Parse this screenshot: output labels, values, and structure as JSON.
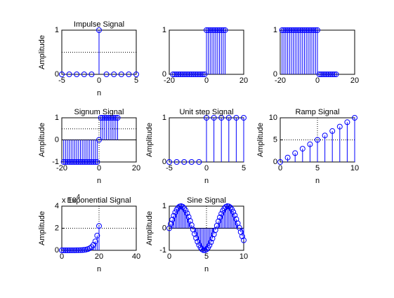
{
  "chart_data": [
    {
      "type": "stem",
      "title": "Impulse Signal",
      "xlabel": "n",
      "ylabel": "Amplitude",
      "color": "#0000ff",
      "x": [
        -5,
        -4,
        -3,
        -2,
        -1,
        0,
        1,
        2,
        3,
        4,
        5
      ],
      "values": [
        0,
        0,
        0,
        0,
        0,
        1,
        0,
        0,
        0,
        0,
        0
      ],
      "xlim": [
        -5,
        5
      ],
      "xticks": [
        -5,
        0,
        5
      ],
      "ylim": [
        0,
        1
      ],
      "yticks": [
        0,
        1
      ],
      "hline": 0.5,
      "vline": 0
    },
    {
      "type": "stem",
      "color": "#0000ff",
      "x": [
        -18,
        -17,
        -16,
        -15,
        -14,
        -13,
        -12,
        -11,
        -10,
        -9,
        -8,
        -7,
        -6,
        -5,
        -4,
        -3,
        -2,
        -1,
        0,
        1,
        2,
        3,
        4,
        5,
        6,
        7,
        8,
        9,
        10
      ],
      "values": [
        0,
        0,
        0,
        0,
        0,
        0,
        0,
        0,
        0,
        0,
        0,
        0,
        0,
        0,
        0,
        0,
        0,
        0,
        1,
        1,
        1,
        1,
        1,
        1,
        1,
        1,
        1,
        1,
        1
      ],
      "xlim": [
        -20,
        20
      ],
      "xticks": [
        -20,
        0,
        20
      ],
      "ylim": [
        0,
        1
      ],
      "yticks": [
        0,
        1
      ]
    },
    {
      "type": "stem",
      "color": "#0000ff",
      "x": [
        -19,
        -18,
        -17,
        -16,
        -15,
        -14,
        -13,
        -12,
        -11,
        -10,
        -9,
        -8,
        -7,
        -6,
        -5,
        -4,
        -3,
        -2,
        -1,
        0,
        1,
        2,
        3,
        4,
        5,
        6,
        7,
        8,
        9,
        10
      ],
      "values": [
        1,
        1,
        1,
        1,
        1,
        1,
        1,
        1,
        1,
        1,
        1,
        1,
        1,
        1,
        1,
        1,
        1,
        1,
        1,
        1,
        0,
        0,
        0,
        0,
        0,
        0,
        0,
        0,
        0,
        0
      ],
      "xlim": [
        -20,
        20
      ],
      "xticks": [
        -20,
        0,
        20
      ],
      "ylim": [
        0,
        1
      ],
      "yticks": [
        0,
        1
      ]
    },
    {
      "type": "stem",
      "title": "Signum Signal",
      "xlabel": "n",
      "ylabel": "Amplitude",
      "color": "#0000ff",
      "x": [
        -19,
        -18,
        -17,
        -16,
        -15,
        -14,
        -13,
        -12,
        -11,
        -10,
        -9,
        -8,
        -7,
        -6,
        -5,
        -4,
        -3,
        -2,
        -1,
        0,
        1,
        2,
        3,
        4,
        5,
        6,
        7,
        8,
        9,
        10
      ],
      "values": [
        -1,
        -1,
        -1,
        -1,
        -1,
        -1,
        -1,
        -1,
        -1,
        -1,
        -1,
        -1,
        -1,
        -1,
        -1,
        -1,
        -1,
        -1,
        -1,
        0,
        1,
        1,
        1,
        1,
        1,
        1,
        1,
        1,
        1,
        1
      ],
      "xlim": [
        -20,
        20
      ],
      "xticks": [
        -20,
        0,
        20
      ],
      "ylim": [
        -1,
        1
      ],
      "yticks": [
        -1,
        0,
        1
      ],
      "hline": 0.5,
      "vline": 0
    },
    {
      "type": "stem",
      "title": "Unit step Signal",
      "xlabel": "n",
      "ylabel": "Amplitude",
      "color": "#0000ff",
      "x": [
        -5,
        -4,
        -3,
        -2,
        -1,
        0,
        1,
        2,
        3,
        4,
        5
      ],
      "values": [
        0,
        0,
        0,
        0,
        0,
        1,
        1,
        1,
        1,
        1,
        1
      ],
      "xlim": [
        -5,
        5
      ],
      "xticks": [
        -5,
        0,
        5
      ],
      "ylim": [
        0,
        1
      ],
      "yticks": [
        0,
        1
      ],
      "vline": 0
    },
    {
      "type": "stem",
      "title": "Ramp Signal",
      "xlabel": "n",
      "ylabel": "Amplitude",
      "color": "#0000ff",
      "x": [
        0,
        1,
        2,
        3,
        4,
        5,
        6,
        7,
        8,
        9,
        10
      ],
      "values": [
        0,
        1,
        2,
        3,
        4,
        5,
        6,
        7,
        8,
        9,
        10
      ],
      "xlim": [
        0,
        10
      ],
      "xticks": [
        0,
        5,
        10
      ],
      "ylim": [
        0,
        10
      ],
      "yticks": [
        0,
        5,
        10
      ],
      "hline": 5,
      "vline": 5
    },
    {
      "type": "stem",
      "title": "Exponential Signal",
      "xlabel": "n",
      "ylabel": "Amplitude",
      "color": "#0000ff",
      "exponent_base": "x 10",
      "exponent": "4",
      "x": [
        0,
        1,
        2,
        3,
        4,
        5,
        6,
        7,
        8,
        9,
        10,
        11,
        12,
        13,
        14,
        15,
        16,
        17,
        18,
        19,
        20
      ],
      "values": [
        0.0001,
        0.0002,
        0.0003,
        0.0004,
        0.0007,
        0.0012,
        0.002,
        0.0033,
        0.0055,
        0.009,
        0.0148,
        0.0245,
        0.0403,
        0.0665,
        0.1097,
        0.1808,
        0.2981,
        0.4915,
        0.8103,
        1.336,
        2.2026
      ],
      "xlim": [
        0,
        40
      ],
      "xticks": [
        0,
        20,
        40
      ],
      "ylim": [
        0,
        4
      ],
      "yticks": [
        0,
        2,
        4
      ],
      "hline": 2,
      "vline": 20
    },
    {
      "type": "stem",
      "title": "Sine Signal",
      "xlabel": "n",
      "ylabel": "Amplitude",
      "color": "#0000ff",
      "x": [
        0,
        0.2,
        0.4,
        0.6,
        0.8,
        1,
        1.2,
        1.4,
        1.6,
        1.8,
        2,
        2.2,
        2.4,
        2.6,
        2.8,
        3,
        3.2,
        3.4,
        3.6,
        3.8,
        4,
        4.2,
        4.4,
        4.6,
        4.8,
        5,
        5.2,
        5.4,
        5.6,
        5.8,
        6,
        6.2,
        6.4,
        6.6,
        6.8,
        7,
        7.2,
        7.4,
        7.6,
        7.8,
        8,
        8.2,
        8.4,
        8.6,
        8.8,
        9,
        9.2,
        9.4,
        9.6,
        9.8,
        10
      ],
      "values": [
        0,
        0.199,
        0.389,
        0.565,
        0.717,
        0.841,
        0.932,
        0.985,
        1,
        0.974,
        0.909,
        0.808,
        0.675,
        0.516,
        0.335,
        0.141,
        -0.058,
        -0.256,
        -0.443,
        -0.612,
        -0.757,
        -0.872,
        -0.952,
        -0.994,
        -0.996,
        -0.959,
        -0.883,
        -0.773,
        -0.631,
        -0.465,
        -0.279,
        -0.083,
        0.117,
        0.312,
        0.494,
        0.657,
        0.794,
        0.899,
        0.968,
        0.999,
        0.989,
        0.941,
        0.855,
        0.734,
        0.585,
        0.412,
        0.223,
        0.025,
        -0.174,
        -0.366,
        -0.544
      ],
      "xlim": [
        0,
        10
      ],
      "xticks": [
        0,
        5,
        10
      ],
      "ylim": [
        -1,
        1
      ],
      "yticks": [
        -1,
        0,
        1
      ],
      "hline": 0,
      "vline": 5
    }
  ]
}
